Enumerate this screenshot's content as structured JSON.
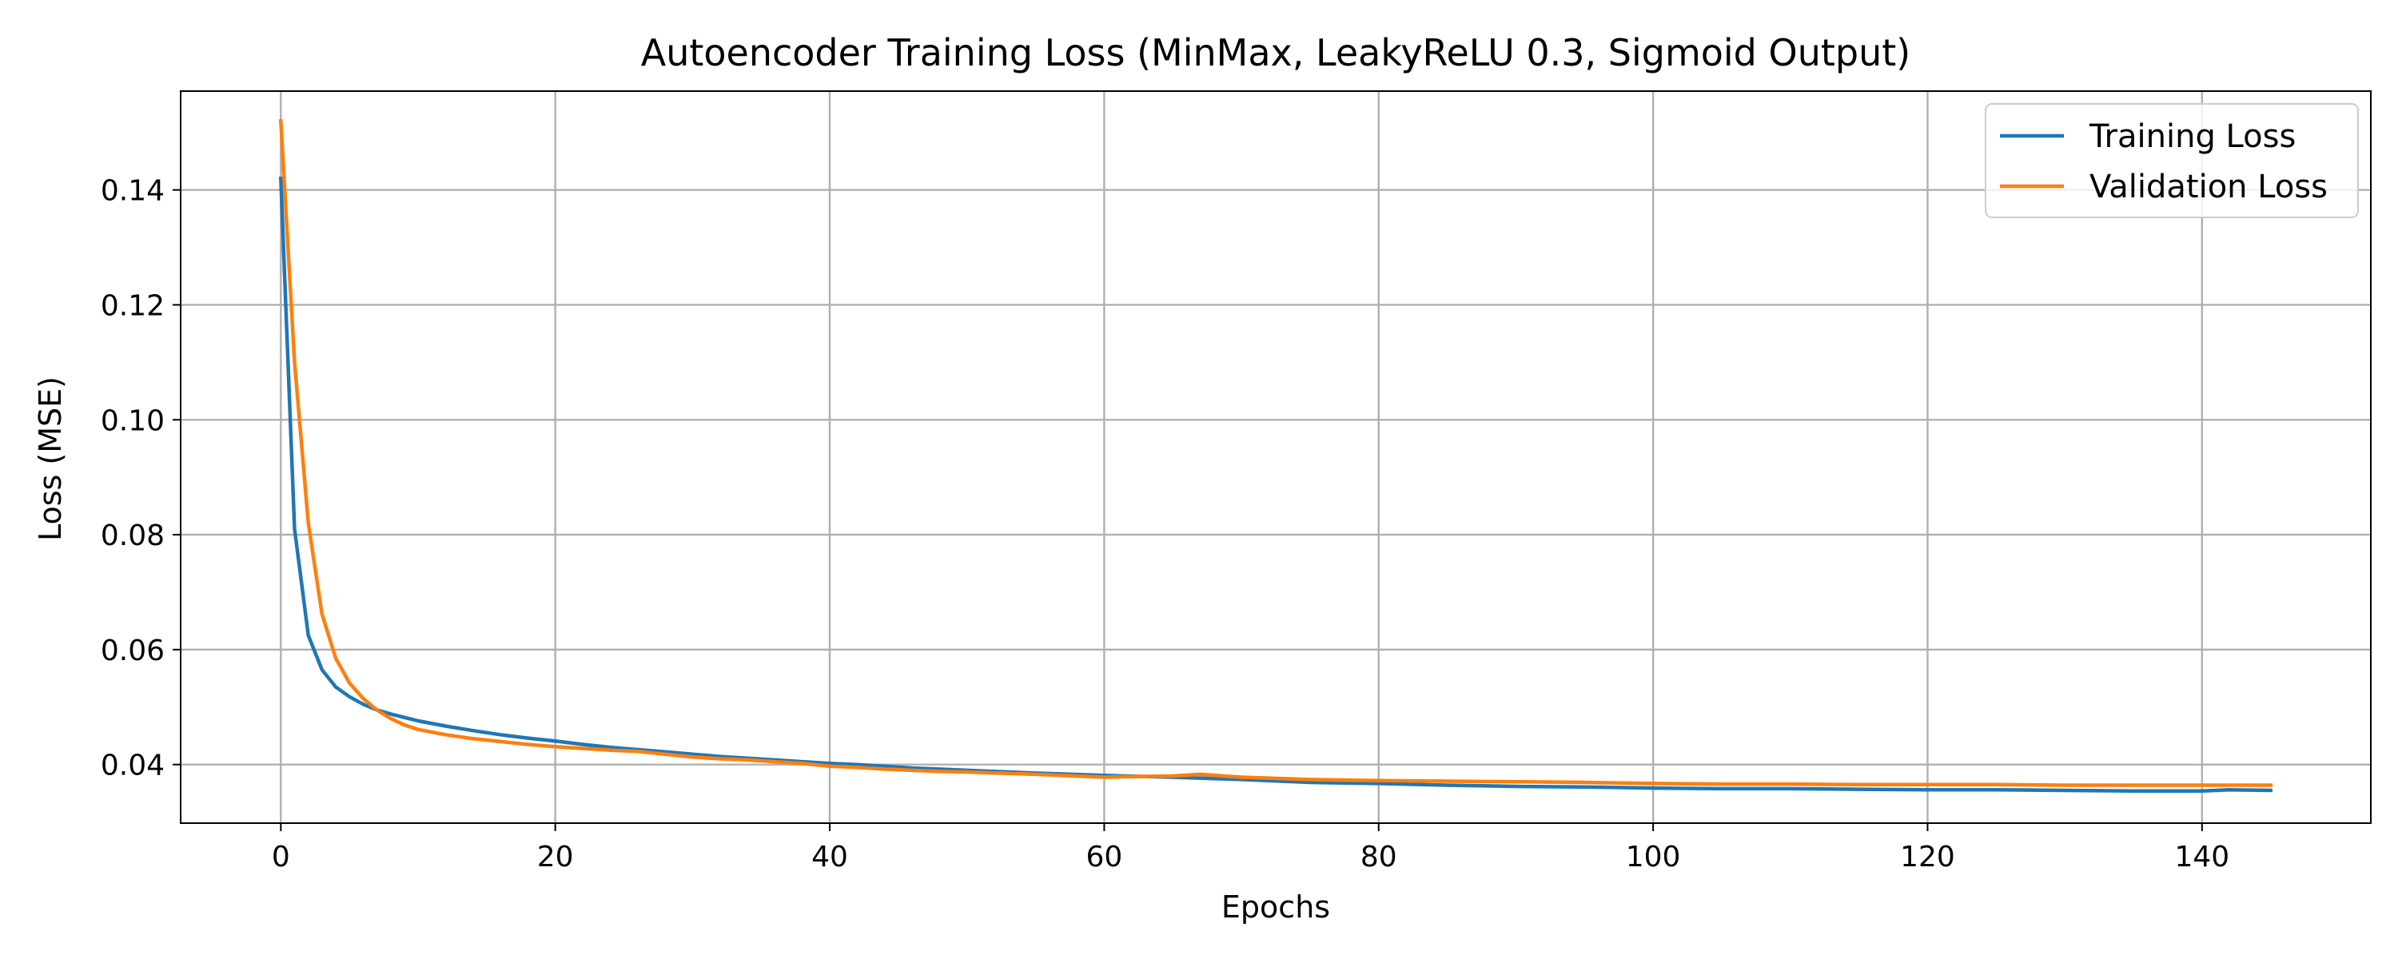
{
  "chart_data": {
    "type": "line",
    "title": "Autoencoder Training Loss (MinMax, LeakyReLU 0.3, Sigmoid Output)",
    "xlabel": "Epochs",
    "ylabel": "Loss (MSE)",
    "xlim": [
      -7.3,
      152.3
    ],
    "ylim": [
      0.0298,
      0.1572
    ],
    "grid": true,
    "legend_position": "top-right",
    "xticks": [
      0,
      20,
      40,
      60,
      80,
      100,
      120,
      140
    ],
    "xtick_labels": [
      "0",
      "20",
      "40",
      "60",
      "80",
      "100",
      "120",
      "140"
    ],
    "yticks": [
      0.04,
      0.06,
      0.08,
      0.1,
      0.12,
      0.14
    ],
    "ytick_labels": [
      "0.04",
      "0.06",
      "0.08",
      "0.10",
      "0.12",
      "0.14"
    ],
    "series": [
      {
        "name": "Training Loss",
        "color": "#1f77b4",
        "x": [
          0,
          1,
          2,
          3,
          4,
          5,
          6,
          7,
          8,
          9,
          10,
          12,
          14,
          16,
          18,
          20,
          22,
          24,
          26,
          28,
          30,
          32,
          34,
          36,
          38,
          40,
          42,
          44,
          46,
          48,
          50,
          55,
          60,
          65,
          70,
          75,
          80,
          85,
          90,
          95,
          100,
          105,
          110,
          115,
          120,
          125,
          130,
          135,
          140,
          142,
          145
        ],
        "values": [
          0.142,
          0.081,
          0.0625,
          0.0565,
          0.0535,
          0.0518,
          0.0505,
          0.0495,
          0.0488,
          0.0482,
          0.0476,
          0.0467,
          0.0459,
          0.0452,
          0.0446,
          0.0441,
          0.0435,
          0.043,
          0.0426,
          0.0422,
          0.0418,
          0.0414,
          0.0411,
          0.0408,
          0.0405,
          0.0402,
          0.04,
          0.0397,
          0.0394,
          0.0392,
          0.039,
          0.0385,
          0.0381,
          0.0378,
          0.0374,
          0.0369,
          0.0367,
          0.0364,
          0.0362,
          0.0361,
          0.0359,
          0.0358,
          0.0358,
          0.0357,
          0.0356,
          0.0356,
          0.0355,
          0.0354,
          0.0354,
          0.0356,
          0.0355
        ]
      },
      {
        "name": "Validation Loss",
        "color": "#ff7f0e",
        "x": [
          0,
          1,
          2,
          3,
          4,
          5,
          6,
          7,
          8,
          9,
          10,
          12,
          14,
          16,
          18,
          20,
          22,
          24,
          26,
          28,
          30,
          32,
          34,
          36,
          38,
          40,
          42,
          44,
          46,
          48,
          50,
          55,
          60,
          62,
          65,
          67,
          70,
          75,
          80,
          85,
          90,
          95,
          100,
          105,
          110,
          115,
          120,
          125,
          130,
          135,
          140,
          145
        ],
        "values": [
          0.152,
          0.11,
          0.082,
          0.0662,
          0.0585,
          0.0542,
          0.0515,
          0.0495,
          0.048,
          0.0469,
          0.0461,
          0.0452,
          0.0445,
          0.044,
          0.0435,
          0.0431,
          0.0428,
          0.0425,
          0.0423,
          0.0418,
          0.0413,
          0.041,
          0.0408,
          0.0405,
          0.0402,
          0.0397,
          0.0395,
          0.0392,
          0.039,
          0.0388,
          0.0387,
          0.0383,
          0.0378,
          0.0379,
          0.038,
          0.0383,
          0.0378,
          0.0374,
          0.0372,
          0.0371,
          0.037,
          0.0369,
          0.0367,
          0.0366,
          0.0366,
          0.0365,
          0.0365,
          0.0365,
          0.0364,
          0.0364,
          0.0364,
          0.0364
        ]
      }
    ]
  }
}
